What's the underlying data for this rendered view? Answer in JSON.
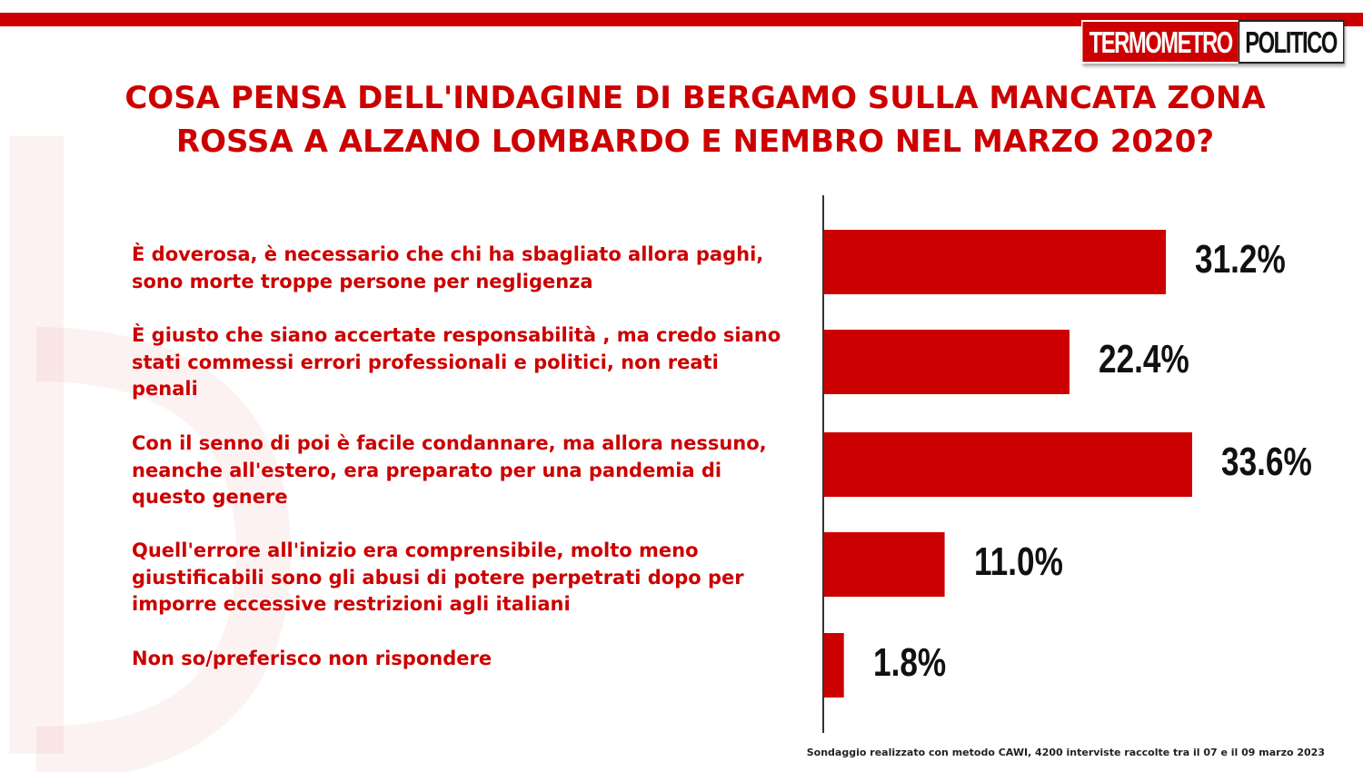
{
  "logo": {
    "left": "TERMOMETRO",
    "right": "POLITICO"
  },
  "title": "COSA PENSA DELL'INDAGINE DI BERGAMO SULLA MANCATA ZONA ROSSA A ALZANO LOMBARDO E NEMBRO NEL MARZO 2020?",
  "source": "Sondaggio realizzato con metodo CAWI, 4200 interviste raccolte tra il 07 e il 09 marzo 2023",
  "colors": {
    "accent": "#cc0000",
    "bar": "#cc0000",
    "value_text": "#111111"
  },
  "chart_data": {
    "type": "bar",
    "orientation": "horizontal",
    "title": "COSA PENSA DELL'INDAGINE DI BERGAMO SULLA MANCATA ZONA ROSSA A ALZANO LOMBARDO E NEMBRO NEL MARZO 2020?",
    "categories": [
      "È doverosa, è necessario che chi ha sbagliato allora paghi, sono morte troppe persone per negligenza",
      "È giusto che siano accertate responsabilità , ma credo siano stati commessi errori professionali e politici, non reati penali",
      "Con il senno di poi è facile condannare, ma allora nessuno, neanche all'estero, era preparato per una pandemia di questo genere",
      "Quell'errore all'inizio era comprensibile, molto meno giustificabili sono gli abusi di potere perpetrati dopo per imporre eccessive restrizioni agli italiani",
      "Non so/preferisco non rispondere"
    ],
    "values": [
      31.2,
      22.4,
      33.6,
      11.0,
      1.8
    ],
    "value_labels": [
      "31.2%",
      "22.4%",
      "33.6%",
      "11.0%",
      "1.8%"
    ],
    "xlim": [
      0,
      40
    ],
    "grid": false,
    "legend": "none"
  }
}
